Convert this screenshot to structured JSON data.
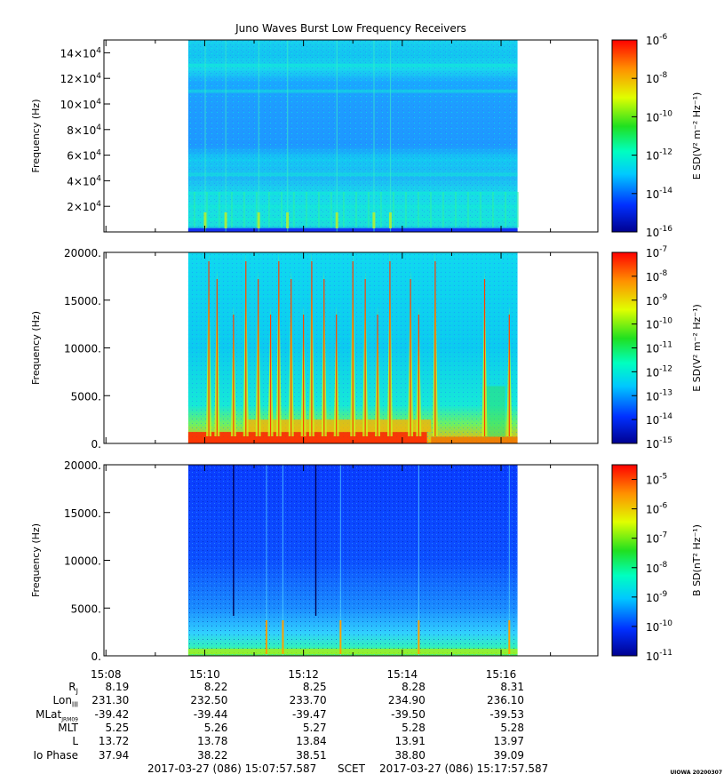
{
  "title": "Juno Waves Burst Low Frequency Receivers",
  "chart_data": [
    {
      "type": "heatmap",
      "ylabel": "Frequency (Hz)",
      "yticks": [
        "2×10^4",
        "4×10^4",
        "6×10^4",
        "8×10^4",
        "10×10^4",
        "12×10^4",
        "14×10^4"
      ],
      "yticks_html": [
        [
          "2",
          "4"
        ],
        [
          "4",
          "4"
        ],
        [
          "6",
          "4"
        ],
        [
          "8",
          "4"
        ],
        [
          "10",
          "4"
        ],
        [
          "12",
          "4"
        ],
        [
          "14",
          "4"
        ]
      ],
      "ylim": [
        0,
        150000
      ],
      "data_time_range": [
        "15:09:40",
        "15:16:20"
      ],
      "colorbar": {
        "label": "E SD(V² m⁻² Hz⁻¹)",
        "labels": [
          "-6",
          "-8",
          "-10",
          "-12",
          "-14",
          "-16"
        ],
        "range": [
          -16,
          -6
        ],
        "scale": "log"
      },
      "features": [
        {
          "desc": "bright bands",
          "freq_hz": [
            10000,
            20000,
            30000,
            45000,
            110000,
            130000
          ]
        },
        {
          "desc": "vertical spikes at times",
          "times": [
            "15:10:00",
            "15:10:25",
            "15:11:05",
            "15:11:40",
            "15:12:40",
            "15:13:25",
            "15:13:45"
          ]
        }
      ]
    },
    {
      "type": "heatmap",
      "ylabel": "Frequency (Hz)",
      "yticks": [
        "0.",
        "5000.",
        "10000.",
        "15000.",
        "20000."
      ],
      "ylim": [
        0,
        20000
      ],
      "colorbar": {
        "label": "E SD(V² m⁻² Hz⁻¹)",
        "labels": [
          "-7",
          "-8",
          "-9",
          "-10",
          "-11",
          "-12",
          "-13",
          "-14",
          "-15"
        ],
        "range": [
          -15,
          -7
        ],
        "scale": "log"
      },
      "spikes": [
        "15:10:05",
        "15:10:15",
        "15:10:35",
        "15:10:50",
        "15:11:05",
        "15:11:20",
        "15:11:30",
        "15:11:45",
        "15:12:00",
        "15:12:10",
        "15:12:25",
        "15:12:40",
        "15:13:00",
        "15:13:15",
        "15:13:30",
        "15:13:45",
        "15:14:10",
        "15:14:20",
        "15:14:40",
        "15:15:40",
        "15:16:10"
      ]
    },
    {
      "type": "heatmap",
      "ylabel": "Frequency (Hz)",
      "yticks": [
        "0.",
        "5000.",
        "10000.",
        "15000.",
        "20000."
      ],
      "ylim": [
        0,
        20000
      ],
      "colorbar": {
        "label": "B SD(nT² Hz⁻¹)",
        "labels": [
          "-5",
          "-6",
          "-7",
          "-8",
          "-9",
          "-10",
          "-11"
        ],
        "range": [
          -11,
          -4.5
        ],
        "scale": "log"
      },
      "dark_lines": [
        "15:10:35",
        "15:12:15"
      ],
      "bright_lines": [
        "15:11:15",
        "15:11:35",
        "15:12:45",
        "15:14:20",
        "15:16:10"
      ]
    }
  ],
  "xaxis": {
    "ticks": [
      "15:08",
      "15:10",
      "15:12",
      "15:14",
      "15:16"
    ],
    "range": [
      "15:07:57.587",
      "15:17:57.587"
    ]
  },
  "ephemeris": {
    "rows": [
      {
        "label": "R",
        "sub": "J",
        "values": [
          "8.19",
          "8.22",
          "8.25",
          "8.28",
          "8.31"
        ]
      },
      {
        "label": "Lon",
        "sub": "III",
        "values": [
          "231.30",
          "232.50",
          "233.70",
          "234.90",
          "236.10"
        ]
      },
      {
        "label": "MLat",
        "sub": "JRM09",
        "values": [
          "-39.42",
          "-39.44",
          "-39.47",
          "-39.50",
          "-39.53"
        ]
      },
      {
        "label": "MLT",
        "sub": "",
        "values": [
          "5.25",
          "5.26",
          "5.27",
          "5.28",
          "5.28"
        ]
      },
      {
        "label": "L",
        "sub": "",
        "values": [
          "13.72",
          "13.78",
          "13.84",
          "13.91",
          "13.97"
        ]
      },
      {
        "label": "Io Phase",
        "sub": "",
        "values": [
          "37.94",
          "38.22",
          "38.51",
          "38.80",
          "39.09"
        ]
      }
    ]
  },
  "footer": {
    "start": "2017-03-27 (086) 15:07:57.587",
    "mid": "SCET",
    "end": "2017-03-27 (086) 15:17:57.587"
  },
  "stamp": "UIOWA 20200307"
}
